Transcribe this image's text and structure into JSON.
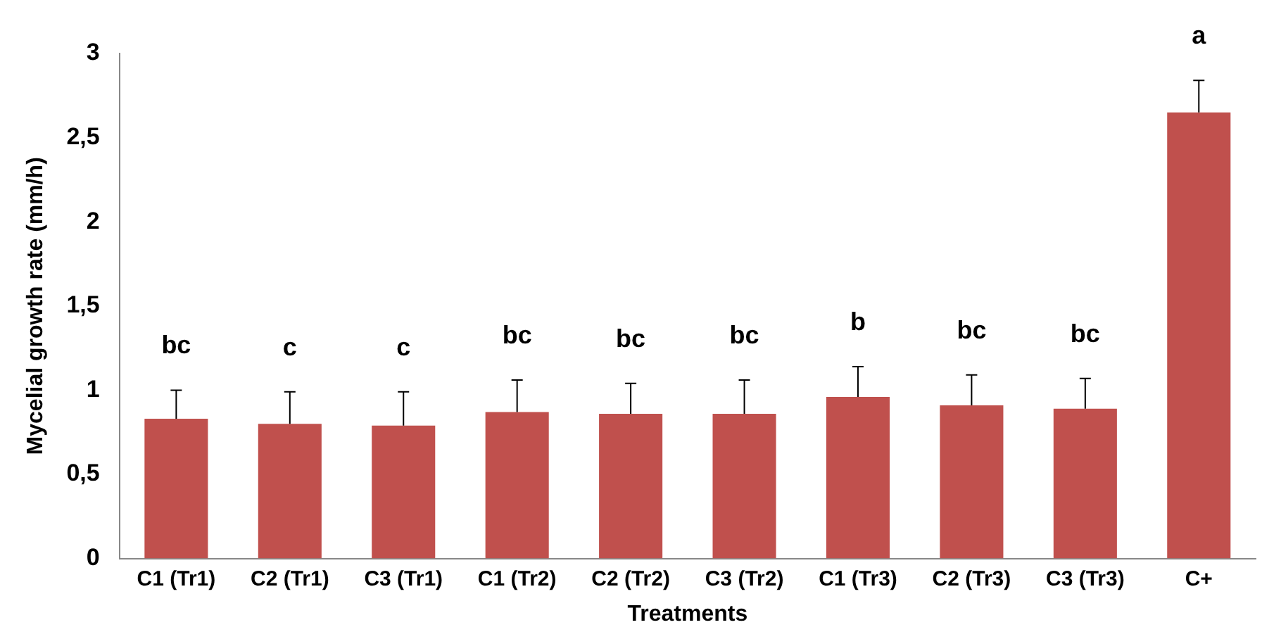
{
  "chart_data": {
    "type": "bar",
    "xlabel": "Treatments",
    "ylabel": "Mycelial growth rate (mm/h)",
    "categories": [
      "C1 (Tr1)",
      "C2 (Tr1)",
      "C3 (Tr1)",
      "C1 (Tr2)",
      "C2 (Tr2)",
      "C3 (Tr2)",
      "C1 (Tr3)",
      "C2 (Tr3)",
      "C3 (Tr3)",
      "C+"
    ],
    "values": [
      0.83,
      0.8,
      0.79,
      0.87,
      0.86,
      0.86,
      0.96,
      0.91,
      0.89,
      2.65
    ],
    "errors": [
      [
        0.83,
        1.0
      ],
      [
        0.8,
        0.99
      ],
      [
        0.79,
        0.99
      ],
      [
        0.87,
        1.06
      ],
      [
        0.86,
        1.04
      ],
      [
        0.86,
        1.06
      ],
      [
        0.96,
        1.14
      ],
      [
        0.91,
        1.09
      ],
      [
        0.89,
        1.07
      ],
      [
        2.65,
        2.84
      ]
    ],
    "color": "#c0504d",
    "ylim": [
      0,
      3
    ],
    "yticks": [
      {
        "value": 0,
        "label": "0"
      },
      {
        "value": 0.5,
        "label": "0,5"
      },
      {
        "value": 1,
        "label": "1"
      },
      {
        "value": 1.5,
        "label": "1,5"
      },
      {
        "value": 2,
        "label": "2"
      },
      {
        "value": 2.5,
        "label": "2,5"
      },
      {
        "value": 3,
        "label": "3"
      }
    ],
    "annotations": [
      "bc",
      "c",
      "c",
      "bc",
      "bc",
      "bc",
      "b",
      "bc",
      "bc",
      "a"
    ],
    "grid": false,
    "legend": false
  }
}
